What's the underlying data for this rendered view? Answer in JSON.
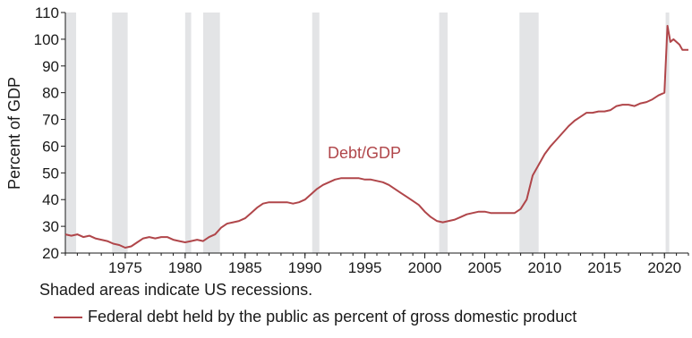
{
  "chart_data": {
    "type": "line",
    "title": "",
    "xlabel": "",
    "ylabel": "Percent of GDP",
    "xlim": [
      1970.0,
      2022.0
    ],
    "ylim": [
      20,
      110
    ],
    "x_ticks": [
      1975,
      1980,
      1985,
      1990,
      1995,
      2000,
      2005,
      2010,
      2015,
      2020
    ],
    "y_ticks": [
      20,
      30,
      40,
      50,
      60,
      70,
      80,
      90,
      100,
      110
    ],
    "grid": false,
    "colors": {
      "series": "#b0464a",
      "recession": "#e3e4e6",
      "axis": "#1a1a1a"
    },
    "series_label": "Debt/GDP",
    "series": [
      {
        "name": "Federal debt held by the public as percent of gross domestic product",
        "x": [
          1970.0,
          1970.5,
          1971.0,
          1971.5,
          1972.0,
          1972.5,
          1973.0,
          1973.5,
          1974.0,
          1974.5,
          1975.0,
          1975.5,
          1976.0,
          1976.5,
          1977.0,
          1977.5,
          1978.0,
          1978.5,
          1979.0,
          1979.5,
          1980.0,
          1980.5,
          1981.0,
          1981.5,
          1982.0,
          1982.5,
          1983.0,
          1983.5,
          1984.0,
          1984.5,
          1985.0,
          1985.5,
          1986.0,
          1986.5,
          1987.0,
          1987.5,
          1988.0,
          1988.5,
          1989.0,
          1989.5,
          1990.0,
          1990.5,
          1991.0,
          1991.5,
          1992.0,
          1992.5,
          1993.0,
          1993.5,
          1994.0,
          1994.5,
          1995.0,
          1995.5,
          1996.0,
          1996.5,
          1997.0,
          1997.5,
          1998.0,
          1998.5,
          1999.0,
          1999.5,
          2000.0,
          2000.5,
          2001.0,
          2001.5,
          2002.0,
          2002.5,
          2003.0,
          2003.5,
          2004.0,
          2004.5,
          2005.0,
          2005.5,
          2006.0,
          2006.5,
          2007.0,
          2007.5,
          2008.0,
          2008.5,
          2009.0,
          2009.5,
          2010.0,
          2010.5,
          2011.0,
          2011.5,
          2012.0,
          2012.5,
          2013.0,
          2013.5,
          2014.0,
          2014.5,
          2015.0,
          2015.5,
          2016.0,
          2016.5,
          2017.0,
          2017.5,
          2018.0,
          2018.5,
          2019.0,
          2019.5,
          2020.0,
          2020.25,
          2020.5,
          2020.75,
          2021.0,
          2021.25,
          2021.5,
          2021.75,
          2022.0
        ],
        "y": [
          27,
          26.5,
          27,
          26,
          26.5,
          25.5,
          25,
          24.5,
          23.5,
          23,
          22,
          22.5,
          24,
          25.5,
          26,
          25.5,
          26,
          26,
          25,
          24.5,
          24,
          24.5,
          25,
          24.5,
          26,
          27,
          29.5,
          31,
          31.5,
          32,
          33,
          35,
          37,
          38.5,
          39,
          39,
          39,
          39,
          38.5,
          39,
          40,
          42,
          44,
          45.5,
          46.5,
          47.5,
          48,
          48,
          48,
          48,
          47.5,
          47.5,
          47,
          46.5,
          45.5,
          44,
          42.5,
          41,
          39.5,
          38,
          35.5,
          33.5,
          32,
          31.5,
          32,
          32.5,
          33.5,
          34.5,
          35,
          35.5,
          35.5,
          35,
          35,
          35,
          35,
          35,
          36.5,
          40,
          49,
          53,
          57,
          60,
          62.5,
          65,
          67.5,
          69.5,
          71,
          72.5,
          72.5,
          73,
          73,
          73.5,
          75,
          75.5,
          75.5,
          75,
          76,
          76.5,
          77.5,
          79,
          80,
          105,
          99,
          100,
          99,
          98,
          96,
          96,
          96
        ]
      }
    ],
    "recessions": [
      [
        1970.0,
        1970.9
      ],
      [
        1973.9,
        1975.2
      ],
      [
        1980.0,
        1980.5
      ],
      [
        1981.5,
        1982.9
      ],
      [
        1990.6,
        1991.2
      ],
      [
        2001.2,
        2001.9
      ],
      [
        2007.9,
        2009.5
      ],
      [
        2020.1,
        2020.4
      ]
    ]
  },
  "note": "Shaded areas indicate US recessions.",
  "legend": {
    "label": "Federal debt held by the public as percent of gross domestic product",
    "color": "#b0464a"
  }
}
